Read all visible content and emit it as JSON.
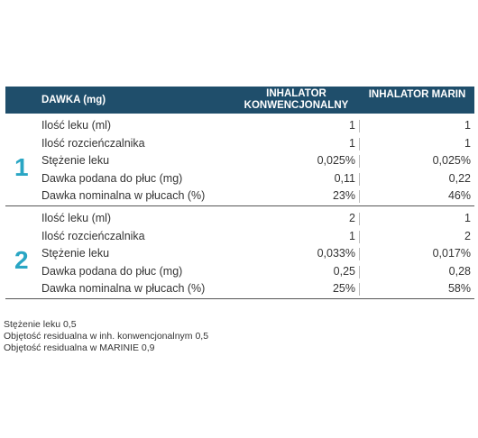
{
  "table": {
    "header": {
      "label": "DAWKA (mg)",
      "col1_line1": "INHALATOR",
      "col1_line2": "KONWENCJONALNY",
      "col2": "INHALATOR MARIN"
    },
    "groups": [
      {
        "number": "1",
        "rows": [
          {
            "label": "Ilość leku (ml)",
            "v1": "1",
            "v2": "1"
          },
          {
            "label": "Ilość rozcieńczalnika",
            "v1": "1",
            "v2": "1"
          },
          {
            "label": "Stężenie leku",
            "v1": "0,025%",
            "v2": "0,025%"
          },
          {
            "label": "Dawka podana do płuc (mg)",
            "v1": "0,11",
            "v2": "0,22"
          },
          {
            "label": "Dawka nominalna w płucach (%)",
            "v1": "23%",
            "v2": "46%"
          }
        ]
      },
      {
        "number": "2",
        "rows": [
          {
            "label": "Ilość leku (ml)",
            "v1": "2",
            "v2": "1"
          },
          {
            "label": "Ilość rozcieńczalnika",
            "v1": "1",
            "v2": "2"
          },
          {
            "label": "Stężenie leku",
            "v1": "0,033%",
            "v2": "0,017%"
          },
          {
            "label": "Dawka podana do płuc (mg)",
            "v1": "0,25",
            "v2": "0,28"
          },
          {
            "label": "Dawka nominalna w płucach (%)",
            "v1": "25%",
            "v2": "58%"
          }
        ]
      }
    ]
  },
  "notes": [
    "Stężenie leku 0,5",
    "Objętość residualna w inh. konwencjonalnym 0,5",
    "Objętość residualna w MARINIE 0,9"
  ],
  "colors": {
    "header_bg": "#1f4e6b",
    "group_number": "#2aa6c4"
  }
}
